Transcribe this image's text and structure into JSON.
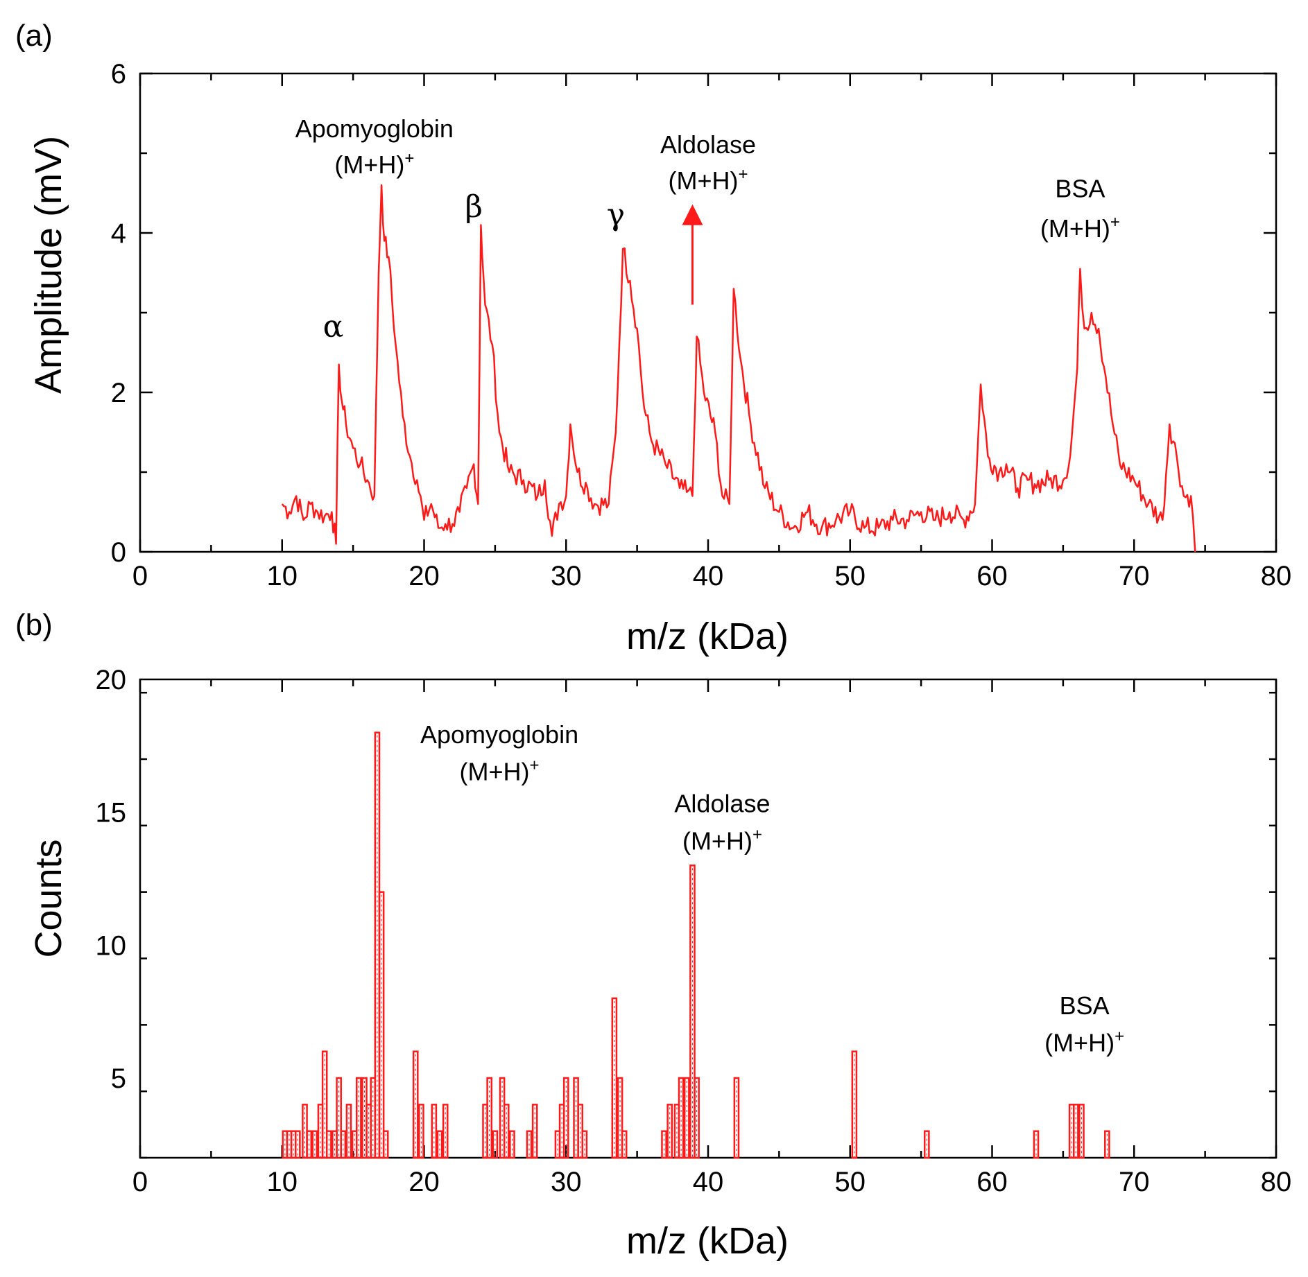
{
  "chart_data": [
    {
      "type": "line",
      "panel_label": "(a)",
      "xlabel": "m/z (kDa)",
      "ylabel": "Amplitude (mV)",
      "xlim": [
        0,
        80
      ],
      "ylim": [
        0,
        6
      ],
      "xticks": [
        "0",
        "10",
        "20",
        "30",
        "40",
        "50",
        "60",
        "70",
        "80"
      ],
      "yticks": [
        "0",
        "2",
        "4",
        "6"
      ],
      "grid": false,
      "color": "#ff1a1a",
      "series": [
        {
          "x": [
            10,
            10.5,
            11,
            11.5,
            12,
            12.5,
            13,
            13.5,
            13.8,
            14.0,
            14.2,
            14.5,
            15,
            15.5,
            16,
            16.5,
            16.8,
            17.0,
            17.2,
            17.5,
            18,
            18.5,
            19,
            19.5,
            20,
            20.5,
            21,
            21.5,
            22,
            22.5,
            23,
            23.5,
            23.8,
            24.0,
            24.3,
            24.8,
            25.3,
            26,
            27,
            28,
            28.5,
            29,
            29.5,
            30,
            30.3,
            30.8,
            31.5,
            32,
            33,
            33.5,
            34.0,
            34.5,
            35,
            35.5,
            36,
            37,
            38,
            38.5,
            38.9,
            39.2,
            39.7,
            40.5,
            41,
            41.5,
            41.8,
            42.3,
            43,
            44,
            45,
            46,
            47,
            48,
            49,
            50,
            51,
            52,
            53,
            54,
            55,
            56,
            57,
            58,
            58.8,
            59.2,
            59.7,
            60.5,
            61,
            61.8,
            62.5,
            63,
            64,
            65,
            65.5,
            66.0,
            66.2,
            66.5,
            67,
            67.5,
            68,
            68.5,
            69,
            70,
            71,
            72,
            72.5,
            73,
            73.5,
            74,
            74.3
          ],
          "y": [
            0.6,
            0.5,
            0.7,
            0.4,
            0.6,
            0.5,
            0.45,
            0.5,
            0.1,
            2.35,
            1.9,
            1.6,
            1.3,
            1.1,
            0.9,
            0.7,
            3.5,
            4.6,
            3.9,
            3.7,
            2.6,
            1.7,
            1.2,
            0.9,
            0.4,
            0.6,
            0.3,
            0.35,
            0.35,
            0.5,
            0.8,
            1.1,
            0.6,
            4.1,
            3.1,
            2.6,
            1.5,
            1.0,
            0.9,
            0.7,
            0.9,
            0.2,
            0.6,
            0.7,
            1.6,
            1.0,
            0.8,
            0.6,
            0.6,
            1.5,
            3.8,
            3.4,
            2.8,
            1.8,
            1.4,
            1.1,
            0.8,
            0.75,
            0.7,
            2.7,
            2.0,
            1.5,
            0.7,
            0.6,
            3.3,
            2.4,
            1.6,
            0.8,
            0.5,
            0.3,
            0.5,
            0.3,
            0.4,
            0.5,
            0.3,
            0.3,
            0.4,
            0.4,
            0.5,
            0.4,
            0.5,
            0.4,
            0.6,
            2.1,
            1.2,
            1.0,
            1.1,
            0.8,
            0.9,
            0.85,
            0.9,
            0.9,
            1.2,
            2.3,
            3.55,
            2.8,
            3.0,
            2.8,
            2.2,
            1.6,
            1.1,
            0.9,
            0.6,
            0.4,
            1.6,
            1.2,
            0.7,
            0.7,
            0.0
          ]
        }
      ],
      "annotations": [
        {
          "text": "α",
          "x": 13.6,
          "y": 2.7
        },
        {
          "text": "Apomyoglobin",
          "x": 16.5,
          "y": 5.2
        },
        {
          "text": "(M+H)+",
          "x": 16.5,
          "y": 4.75
        },
        {
          "text": "β",
          "x": 23.5,
          "y": 4.2
        },
        {
          "text": "γ",
          "x": 33.5,
          "y": 4.1
        },
        {
          "text": "Aldolase",
          "x": 40.0,
          "y": 5.0
        },
        {
          "text": "(M+H)+",
          "x": 40.0,
          "y": 4.55
        },
        {
          "text": "BSA",
          "x": 66.2,
          "y": 4.45
        },
        {
          "text": "(M+H)+",
          "x": 66.2,
          "y": 3.95
        }
      ],
      "arrow": {
        "x": 38.9,
        "from_y": 3.1,
        "to_y": 4.35
      }
    },
    {
      "type": "bar",
      "panel_label": "(b)",
      "xlabel": "m/z (kDa)",
      "ylabel": "Counts",
      "xlim": [
        0,
        80
      ],
      "ylim": [
        2,
        20
      ],
      "xticks": [
        "0",
        "10",
        "20",
        "30",
        "40",
        "50",
        "60",
        "70",
        "80"
      ],
      "yticks": [
        "5",
        "10",
        "15",
        "20"
      ],
      "grid": false,
      "color": "#ff1a1a",
      "bin_width": 0.3,
      "bins": [
        {
          "x": 10.2,
          "count": 3
        },
        {
          "x": 10.5,
          "count": 3
        },
        {
          "x": 10.8,
          "count": 3
        },
        {
          "x": 11.1,
          "count": 3
        },
        {
          "x": 11.6,
          "count": 4
        },
        {
          "x": 11.9,
          "count": 3
        },
        {
          "x": 12.3,
          "count": 3
        },
        {
          "x": 12.7,
          "count": 4
        },
        {
          "x": 13.0,
          "count": 6
        },
        {
          "x": 13.3,
          "count": 3
        },
        {
          "x": 13.7,
          "count": 3
        },
        {
          "x": 14.0,
          "count": 5
        },
        {
          "x": 14.3,
          "count": 3
        },
        {
          "x": 14.7,
          "count": 4
        },
        {
          "x": 15.1,
          "count": 3
        },
        {
          "x": 15.4,
          "count": 5
        },
        {
          "x": 15.8,
          "count": 5
        },
        {
          "x": 16.1,
          "count": 4
        },
        {
          "x": 16.4,
          "count": 5
        },
        {
          "x": 16.7,
          "count": 18
        },
        {
          "x": 17.0,
          "count": 12
        },
        {
          "x": 17.3,
          "count": 3
        },
        {
          "x": 19.4,
          "count": 6
        },
        {
          "x": 19.8,
          "count": 4
        },
        {
          "x": 20.7,
          "count": 4
        },
        {
          "x": 21.1,
          "count": 3
        },
        {
          "x": 21.5,
          "count": 4
        },
        {
          "x": 24.3,
          "count": 4
        },
        {
          "x": 24.6,
          "count": 5
        },
        {
          "x": 25.0,
          "count": 3
        },
        {
          "x": 25.5,
          "count": 5
        },
        {
          "x": 25.8,
          "count": 4
        },
        {
          "x": 26.2,
          "count": 3
        },
        {
          "x": 27.4,
          "count": 3
        },
        {
          "x": 27.8,
          "count": 4
        },
        {
          "x": 29.4,
          "count": 3
        },
        {
          "x": 29.7,
          "count": 4
        },
        {
          "x": 30.0,
          "count": 5
        },
        {
          "x": 30.7,
          "count": 5
        },
        {
          "x": 31.0,
          "count": 4
        },
        {
          "x": 31.3,
          "count": 3
        },
        {
          "x": 33.4,
          "count": 8
        },
        {
          "x": 33.8,
          "count": 5
        },
        {
          "x": 34.1,
          "count": 3
        },
        {
          "x": 36.9,
          "count": 3
        },
        {
          "x": 37.3,
          "count": 4
        },
        {
          "x": 37.8,
          "count": 4
        },
        {
          "x": 38.1,
          "count": 5
        },
        {
          "x": 38.5,
          "count": 5
        },
        {
          "x": 38.9,
          "count": 13
        },
        {
          "x": 39.2,
          "count": 5
        },
        {
          "x": 42.0,
          "count": 5
        },
        {
          "x": 50.3,
          "count": 6
        },
        {
          "x": 55.4,
          "count": 3
        },
        {
          "x": 63.1,
          "count": 3
        },
        {
          "x": 65.6,
          "count": 4
        },
        {
          "x": 65.9,
          "count": 4
        },
        {
          "x": 66.3,
          "count": 4
        },
        {
          "x": 68.1,
          "count": 3
        }
      ],
      "annotations": [
        {
          "text": "Apomyoglobin",
          "x": 25.3,
          "y": 17.6
        },
        {
          "text": "(M+H)+",
          "x": 25.3,
          "y": 16.2
        },
        {
          "text": "Aldolase",
          "x": 41.0,
          "y": 15.0
        },
        {
          "text": "(M+H)+",
          "x": 41.0,
          "y": 13.6
        },
        {
          "text": "BSA",
          "x": 66.5,
          "y": 7.4
        },
        {
          "text": "(M+H)+",
          "x": 66.5,
          "y": 6.0
        }
      ]
    }
  ]
}
